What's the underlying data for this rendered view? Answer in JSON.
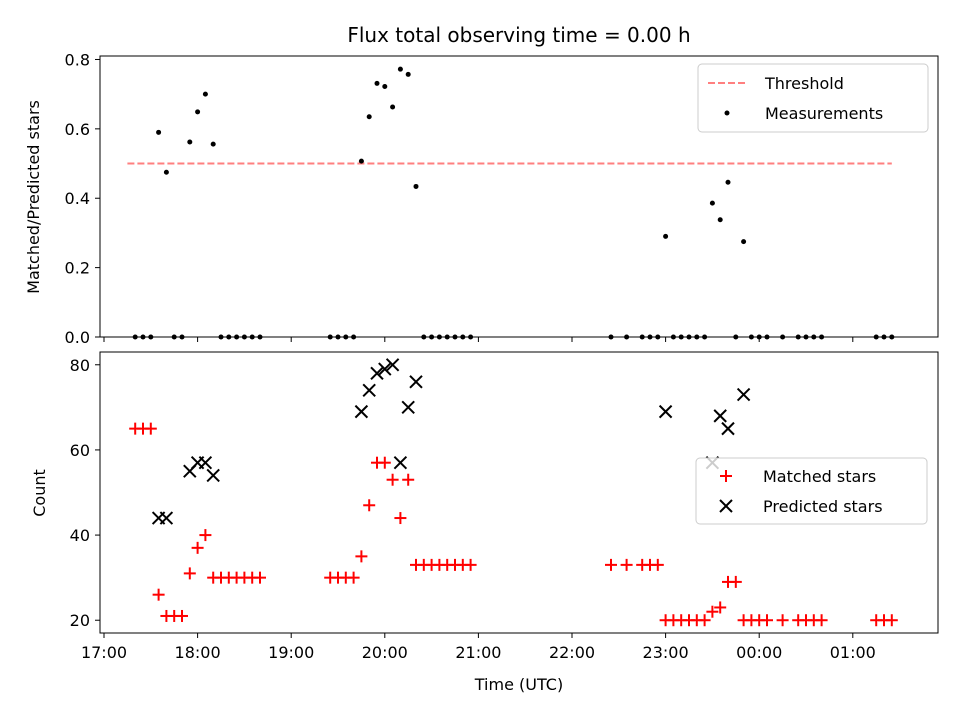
{
  "chart_data": [
    {
      "type": "scatter",
      "title": "Flux total observing time = 0.00 h",
      "xlabel": "",
      "ylabel": "Matched/Predicted stars",
      "ylim": [
        0,
        0.81
      ],
      "yticks": [
        0.0,
        0.2,
        0.4,
        0.6,
        0.8
      ],
      "ytick_labels": [
        "0.0",
        "0.2",
        "0.4",
        "0.6",
        "0.8"
      ],
      "legend": {
        "placement": "top-right",
        "entries": [
          {
            "label": "Threshold",
            "marker": "dashed-line",
            "color": "#ff7f7f"
          },
          {
            "label": "Measurements",
            "marker": "dot",
            "color": "#000000"
          }
        ]
      },
      "threshold": {
        "y": 0.5,
        "x_start": "17:15",
        "x_end": "01:25"
      },
      "series": [
        {
          "name": "Measurements",
          "color": "#000000",
          "points": [
            [
              "17:20",
              0
            ],
            [
              "17:25",
              0
            ],
            [
              "17:30",
              0
            ],
            [
              "17:35",
              0.59
            ],
            [
              "17:40",
              0.475
            ],
            [
              "17:45",
              0
            ],
            [
              "17:50",
              0
            ],
            [
              "17:55",
              0.562
            ],
            [
              "18:00",
              0.649
            ],
            [
              "18:05",
              0.7
            ],
            [
              "18:10",
              0.556
            ],
            [
              "18:15",
              0
            ],
            [
              "18:20",
              0
            ],
            [
              "18:25",
              0
            ],
            [
              "18:30",
              0
            ],
            [
              "18:35",
              0
            ],
            [
              "18:40",
              0
            ],
            [
              "19:25",
              0
            ],
            [
              "19:30",
              0
            ],
            [
              "19:35",
              0
            ],
            [
              "19:40",
              0
            ],
            [
              "19:45",
              0.507
            ],
            [
              "19:50",
              0.635
            ],
            [
              "19:55",
              0.731
            ],
            [
              "20:00",
              0.722
            ],
            [
              "20:05",
              0.663
            ],
            [
              "20:10",
              0.772
            ],
            [
              "20:15",
              0.757
            ],
            [
              "20:20",
              0.434
            ],
            [
              "20:25",
              0
            ],
            [
              "20:30",
              0
            ],
            [
              "20:35",
              0
            ],
            [
              "20:40",
              0
            ],
            [
              "20:45",
              0
            ],
            [
              "20:50",
              0
            ],
            [
              "20:55",
              0
            ],
            [
              "22:25",
              0
            ],
            [
              "22:35",
              0
            ],
            [
              "22:45",
              0
            ],
            [
              "22:50",
              0
            ],
            [
              "22:55",
              0
            ],
            [
              "23:00",
              0.29
            ],
            [
              "23:05",
              0
            ],
            [
              "23:10",
              0
            ],
            [
              "23:15",
              0
            ],
            [
              "23:20",
              0
            ],
            [
              "23:25",
              0
            ],
            [
              "23:30",
              0.386
            ],
            [
              "23:35",
              0.338
            ],
            [
              "23:40",
              0.446
            ],
            [
              "23:45",
              0
            ],
            [
              "23:50",
              0.275
            ],
            [
              "23:55",
              0
            ],
            [
              "00:00",
              0
            ],
            [
              "00:05",
              0
            ],
            [
              "00:15",
              0
            ],
            [
              "00:25",
              0
            ],
            [
              "00:30",
              0
            ],
            [
              "00:35",
              0
            ],
            [
              "00:40",
              0
            ],
            [
              "01:15",
              0
            ],
            [
              "01:20",
              0
            ],
            [
              "01:25",
              0
            ]
          ]
        }
      ]
    },
    {
      "type": "scatter",
      "title": "",
      "xlabel": "Time (UTC)",
      "ylabel": "Count",
      "ylim": [
        17,
        83
      ],
      "yticks": [
        20,
        40,
        60,
        80
      ],
      "ytick_labels": [
        "20",
        "40",
        "60",
        "80"
      ],
      "xticks": [
        "17:00",
        "18:00",
        "19:00",
        "20:00",
        "21:00",
        "22:00",
        "23:00",
        "00:00",
        "01:00"
      ],
      "legend": {
        "placement": "center-right",
        "entries": [
          {
            "label": "Matched stars",
            "marker": "plus",
            "color": "#ff0000"
          },
          {
            "label": "Predicted stars",
            "marker": "x",
            "color": "#000000"
          }
        ]
      },
      "series": [
        {
          "name": "Matched stars",
          "color": "#ff0000",
          "points": [
            [
              "17:20",
              65
            ],
            [
              "17:25",
              65
            ],
            [
              "17:30",
              65
            ],
            [
              "17:35",
              26
            ],
            [
              "17:40",
              21
            ],
            [
              "17:45",
              21
            ],
            [
              "17:50",
              21
            ],
            [
              "17:55",
              31
            ],
            [
              "18:00",
              37
            ],
            [
              "18:05",
              40
            ],
            [
              "18:10",
              30
            ],
            [
              "18:15",
              30
            ],
            [
              "18:20",
              30
            ],
            [
              "18:25",
              30
            ],
            [
              "18:30",
              30
            ],
            [
              "18:35",
              30
            ],
            [
              "18:40",
              30
            ],
            [
              "19:25",
              30
            ],
            [
              "19:30",
              30
            ],
            [
              "19:35",
              30
            ],
            [
              "19:40",
              30
            ],
            [
              "19:45",
              35
            ],
            [
              "19:50",
              47
            ],
            [
              "19:55",
              57
            ],
            [
              "20:00",
              57
            ],
            [
              "20:05",
              53
            ],
            [
              "20:10",
              44
            ],
            [
              "20:15",
              53
            ],
            [
              "20:20",
              33
            ],
            [
              "20:25",
              33
            ],
            [
              "20:30",
              33
            ],
            [
              "20:35",
              33
            ],
            [
              "20:40",
              33
            ],
            [
              "20:45",
              33
            ],
            [
              "20:50",
              33
            ],
            [
              "20:55",
              33
            ],
            [
              "22:25",
              33
            ],
            [
              "22:35",
              33
            ],
            [
              "22:45",
              33
            ],
            [
              "22:50",
              33
            ],
            [
              "22:55",
              33
            ],
            [
              "23:00",
              20
            ],
            [
              "23:05",
              20
            ],
            [
              "23:10",
              20
            ],
            [
              "23:15",
              20
            ],
            [
              "23:20",
              20
            ],
            [
              "23:25",
              20
            ],
            [
              "23:30",
              22
            ],
            [
              "23:35",
              23
            ],
            [
              "23:40",
              29
            ],
            [
              "23:45",
              29
            ],
            [
              "23:50",
              20
            ],
            [
              "23:55",
              20
            ],
            [
              "00:00",
              20
            ],
            [
              "00:05",
              20
            ],
            [
              "00:15",
              20
            ],
            [
              "00:25",
              20
            ],
            [
              "00:30",
              20
            ],
            [
              "00:35",
              20
            ],
            [
              "00:40",
              20
            ],
            [
              "01:15",
              20
            ],
            [
              "01:20",
              20
            ],
            [
              "01:25",
              20
            ]
          ]
        },
        {
          "name": "Predicted stars",
          "color": "#000000",
          "points": [
            [
              "17:35",
              44
            ],
            [
              "17:40",
              44
            ],
            [
              "17:55",
              55
            ],
            [
              "18:00",
              57
            ],
            [
              "18:05",
              57
            ],
            [
              "18:10",
              54
            ],
            [
              "19:45",
              69
            ],
            [
              "19:50",
              74
            ],
            [
              "19:55",
              78
            ],
            [
              "20:00",
              79
            ],
            [
              "20:05",
              80
            ],
            [
              "20:10",
              57
            ],
            [
              "20:15",
              70
            ],
            [
              "20:20",
              76
            ],
            [
              "23:00",
              69
            ],
            [
              "23:30",
              57
            ],
            [
              "23:35",
              68
            ],
            [
              "23:40",
              65
            ],
            [
              "23:50",
              73
            ]
          ]
        }
      ]
    }
  ]
}
